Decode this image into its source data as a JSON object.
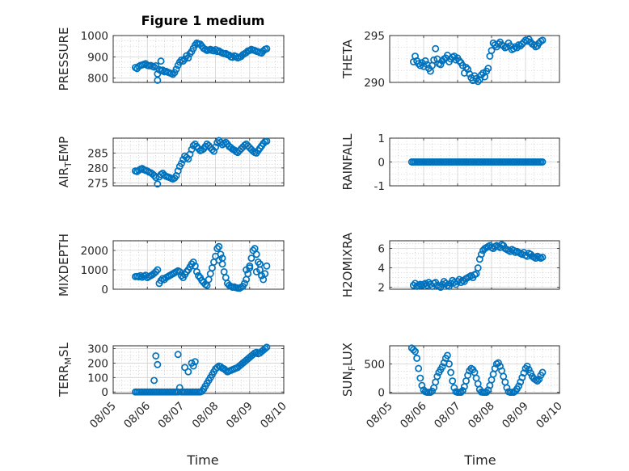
{
  "figure": {
    "title": "Figure 1 medium",
    "xlabel": "Time",
    "marker_color": "#0072BD"
  },
  "chart_data": [
    {
      "type": "scatter",
      "ylabel": "PRESSURE",
      "ylabel_sub": null,
      "xlim": [
        0,
        5
      ],
      "ylim": [
        780,
        1000
      ],
      "yticks": [
        800,
        900,
        1000
      ],
      "ytick_labels": [
        "800",
        "900",
        "1000"
      ],
      "xticks": [
        0,
        1,
        2,
        3,
        4,
        5
      ],
      "xtick_labels": [],
      "grid": true,
      "minor_grid": true,
      "x": [
        0.65,
        0.7,
        0.75,
        0.8,
        0.85,
        0.9,
        0.95,
        1,
        1.05,
        1.1,
        1.15,
        1.2,
        1.25,
        1.3,
        1.35,
        1.4,
        1.45,
        1.5,
        1.55,
        1.6,
        1.65,
        1.7,
        1.75,
        1.8,
        1.85,
        1.9,
        1.95,
        2,
        2.05,
        2.1,
        2.15,
        2.2,
        2.25,
        2.3,
        2.35,
        2.4,
        2.45,
        2.5,
        2.55,
        2.6,
        2.65,
        2.7,
        2.75,
        2.8,
        2.85,
        2.9,
        2.95,
        3,
        3.05,
        3.1,
        3.15,
        3.2,
        3.25,
        3.3,
        3.35,
        3.4,
        3.45,
        3.5,
        3.55,
        3.6,
        3.65,
        3.7,
        3.75,
        3.8,
        3.85,
        3.9,
        3.95,
        4,
        4.05,
        4.1,
        4.15,
        4.2,
        4.25,
        4.3,
        4.35,
        4.4,
        4.45,
        4.5,
        1.3,
        1.4
      ],
      "y": [
        850,
        845,
        855,
        860,
        862,
        865,
        868,
        860,
        858,
        860,
        855,
        852,
        858,
        820,
        840,
        835,
        838,
        830,
        832,
        828,
        825,
        822,
        818,
        826,
        842,
        860,
        875,
        885,
        880,
        890,
        905,
        895,
        915,
        925,
        940,
        955,
        965,
        962,
        960,
        950,
        940,
        935,
        930,
        932,
        935,
        930,
        928,
        934,
        925,
        928,
        922,
        918,
        915,
        916,
        910,
        908,
        900,
        898,
        905,
        902,
        895,
        898,
        902,
        910,
        915,
        920,
        928,
        930,
        935,
        932,
        930,
        926,
        924,
        920,
        918,
        928,
        935,
        938,
        790,
        880
      ]
    },
    {
      "type": "scatter",
      "ylabel": "THETA",
      "ylabel_sub": null,
      "xlim": [
        0,
        5
      ],
      "ylim": [
        290,
        295
      ],
      "yticks": [
        290,
        295
      ],
      "ytick_labels": [
        "290",
        "295"
      ],
      "xticks": [
        0,
        1,
        2,
        3,
        4,
        5
      ],
      "xtick_labels": [],
      "grid": true,
      "minor_grid": true,
      "x": [
        0.7,
        0.75,
        0.8,
        0.85,
        0.9,
        0.95,
        1,
        1.05,
        1.1,
        1.15,
        1.2,
        1.25,
        1.3,
        1.35,
        1.4,
        1.45,
        1.5,
        1.55,
        1.6,
        1.65,
        1.7,
        1.75,
        1.8,
        1.85,
        1.9,
        1.95,
        2,
        2.05,
        2.1,
        2.15,
        2.2,
        2.25,
        2.3,
        2.35,
        2.4,
        2.45,
        2.5,
        2.55,
        2.6,
        2.65,
        2.7,
        2.75,
        2.8,
        2.85,
        2.9,
        2.95,
        3,
        3.05,
        3.1,
        3.15,
        3.2,
        3.25,
        3.3,
        3.35,
        3.4,
        3.45,
        3.5,
        3.55,
        3.6,
        3.65,
        3.7,
        3.75,
        3.8,
        3.85,
        3.9,
        3.95,
        4,
        4.05,
        4.1,
        4.15,
        4.2,
        4.25,
        4.3,
        4.35,
        4.4,
        4.45,
        4.5
      ],
      "y": [
        292.2,
        292.8,
        292.3,
        292.0,
        291.8,
        292.1,
        291.7,
        292.3,
        291.9,
        291.5,
        291.2,
        291.8,
        292.4,
        293.6,
        292.5,
        292.0,
        291.9,
        292.3,
        292.5,
        292.6,
        292.9,
        292.2,
        292.5,
        292.7,
        292.8,
        292.4,
        292.6,
        292.3,
        292.1,
        291.8,
        291.0,
        291.6,
        291.4,
        290.9,
        290.5,
        290.2,
        290.7,
        290.4,
        290.1,
        290.3,
        290.8,
        291.0,
        290.6,
        291.2,
        291.5,
        292.8,
        293.4,
        294.2,
        294.0,
        293.8,
        294.1,
        294.3,
        294.0,
        293.9,
        293.7,
        293.8,
        294.2,
        293.9,
        293.5,
        293.6,
        293.8,
        293.7,
        294.0,
        293.9,
        294.1,
        294.3,
        294.5,
        294.4,
        294.6,
        294.3,
        294.1,
        294.0,
        293.8,
        293.9,
        294.2,
        294.4,
        294.5
      ]
    },
    {
      "type": "scatter",
      "ylabel": "AIR",
      "ylabel_sub": "T",
      "ylabel_suffix": "EMP",
      "xlim": [
        0,
        5
      ],
      "ylim": [
        274,
        290
      ],
      "yticks": [
        275,
        280,
        285
      ],
      "ytick_labels": [
        "275",
        "280",
        "285"
      ],
      "xticks": [
        0,
        1,
        2,
        3,
        4,
        5
      ],
      "xtick_labels": [],
      "grid": true,
      "minor_grid": true,
      "x": [
        0.65,
        0.7,
        0.75,
        0.8,
        0.85,
        0.9,
        0.95,
        1,
        1.05,
        1.1,
        1.15,
        1.2,
        1.25,
        1.3,
        1.35,
        1.4,
        1.45,
        1.5,
        1.55,
        1.6,
        1.65,
        1.7,
        1.75,
        1.8,
        1.85,
        1.9,
        1.95,
        2,
        2.05,
        2.1,
        2.15,
        2.2,
        2.25,
        2.3,
        2.35,
        2.4,
        2.45,
        2.5,
        2.55,
        2.6,
        2.65,
        2.7,
        2.75,
        2.8,
        2.85,
        2.9,
        2.95,
        3,
        3.05,
        3.1,
        3.15,
        3.2,
        3.25,
        3.3,
        3.35,
        3.4,
        3.45,
        3.5,
        3.55,
        3.6,
        3.65,
        3.7,
        3.75,
        3.8,
        3.85,
        3.9,
        3.95,
        4,
        4.05,
        4.1,
        4.15,
        4.2,
        4.25,
        4.3,
        4.35,
        4.4,
        4.45,
        4.5
      ],
      "y": [
        279.0,
        278.8,
        279.2,
        279.6,
        279.8,
        279.4,
        279.2,
        279.0,
        278.6,
        278.4,
        278.0,
        277.5,
        276.8,
        274.6,
        277.0,
        277.8,
        278.2,
        277.6,
        277.2,
        277.0,
        276.8,
        276.5,
        276.3,
        276.6,
        277.4,
        279.0,
        280.5,
        281.5,
        282.8,
        284.0,
        283.5,
        283.0,
        284.6,
        286.2,
        287.5,
        288.0,
        287.2,
        286.5,
        285.8,
        286.0,
        286.4,
        287.2,
        288.0,
        287.5,
        286.8,
        286.2,
        285.6,
        287.0,
        288.5,
        289.2,
        288.6,
        287.8,
        288.2,
        288.6,
        288.0,
        287.2,
        286.8,
        286.3,
        286.0,
        285.5,
        285.2,
        285.8,
        286.4,
        287.0,
        287.6,
        288.0,
        287.4,
        286.8,
        286.2,
        285.6,
        285.2,
        285.0,
        285.8,
        286.6,
        287.4,
        288.2,
        288.8,
        289.0
      ]
    },
    {
      "type": "scatter",
      "ylabel": "RAINFALL",
      "ylabel_sub": null,
      "xlim": [
        0,
        5
      ],
      "ylim": [
        -1,
        1
      ],
      "yticks": [
        -1,
        0,
        1
      ],
      "ytick_labels": [
        "-1",
        "0",
        "1"
      ],
      "xticks": [
        0,
        1,
        2,
        3,
        4,
        5
      ],
      "xtick_labels": [],
      "grid": true,
      "minor_grid": true,
      "x_range": [
        0.65,
        4.5
      ],
      "x_step": 0.05,
      "y_constant": 0
    },
    {
      "type": "scatter",
      "ylabel": "MIXDEPTH",
      "ylabel_sub": null,
      "xlim": [
        0,
        5
      ],
      "ylim": [
        0,
        2500
      ],
      "yticks": [
        0,
        1000,
        2000
      ],
      "ytick_labels": [
        "0",
        "1000",
        "2000"
      ],
      "xticks": [
        0,
        1,
        2,
        3,
        4,
        5
      ],
      "xtick_labels": [],
      "grid": true,
      "minor_grid": true,
      "x": [
        0.65,
        0.7,
        0.75,
        0.8,
        0.85,
        0.9,
        0.95,
        1,
        1.05,
        1.1,
        1.15,
        1.2,
        1.25,
        1.3,
        1.35,
        1.4,
        1.45,
        1.5,
        1.55,
        1.6,
        1.65,
        1.7,
        1.75,
        1.8,
        1.85,
        1.9,
        1.95,
        2,
        2.05,
        2.1,
        2.15,
        2.2,
        2.25,
        2.3,
        2.35,
        2.4,
        2.45,
        2.5,
        2.55,
        2.6,
        2.65,
        2.7,
        2.75,
        2.8,
        2.85,
        2.9,
        2.95,
        3,
        3.05,
        3.1,
        3.15,
        3.2,
        3.25,
        3.3,
        3.35,
        3.4,
        3.45,
        3.5,
        3.55,
        3.6,
        3.65,
        3.7,
        3.75,
        3.8,
        3.85,
        3.9,
        3.95,
        4,
        4.05,
        4.1,
        4.15,
        4.2,
        4.25,
        4.3,
        4.35,
        4.4,
        4.45,
        4.5,
        3.1,
        3.2,
        3.9,
        4.0,
        4.2,
        4.3
      ],
      "y": [
        650,
        660,
        640,
        700,
        620,
        680,
        720,
        600,
        650,
        700,
        750,
        820,
        900,
        1000,
        300,
        450,
        550,
        500,
        600,
        650,
        700,
        750,
        800,
        850,
        900,
        950,
        900,
        700,
        600,
        750,
        900,
        1000,
        1150,
        1300,
        1400,
        1200,
        900,
        700,
        600,
        450,
        350,
        250,
        200,
        500,
        800,
        1100,
        1400,
        1700,
        2100,
        2200,
        1800,
        1300,
        900,
        600,
        300,
        200,
        150,
        100,
        120,
        80,
        60,
        50,
        100,
        150,
        300,
        500,
        800,
        1200,
        1600,
        2000,
        2100,
        1800,
        1400,
        1000,
        700,
        500,
        800,
        1200,
        1500,
        1600,
        1000,
        1100,
        900,
        1300
      ]
    },
    {
      "type": "scatter",
      "ylabel": "H2OMIXRA",
      "ylabel_sub": null,
      "xlim": [
        0,
        5
      ],
      "ylim": [
        1.8,
        6.8
      ],
      "yticks": [
        2,
        4,
        6
      ],
      "ytick_labels": [
        "2",
        "4",
        "6"
      ],
      "xticks": [
        0,
        1,
        2,
        3,
        4,
        5
      ],
      "xtick_labels": [],
      "grid": true,
      "minor_grid": true,
      "x": [
        0.7,
        0.75,
        0.8,
        0.85,
        0.9,
        0.95,
        1,
        1.05,
        1.1,
        1.15,
        1.2,
        1.25,
        1.3,
        1.35,
        1.4,
        1.45,
        1.5,
        1.55,
        1.6,
        1.65,
        1.7,
        1.75,
        1.8,
        1.85,
        1.9,
        1.95,
        2,
        2.05,
        2.1,
        2.15,
        2.2,
        2.25,
        2.3,
        2.35,
        2.4,
        2.45,
        2.5,
        2.55,
        2.6,
        2.65,
        2.7,
        2.75,
        2.8,
        2.85,
        2.9,
        2.95,
        3,
        3.05,
        3.1,
        3.15,
        3.2,
        3.25,
        3.3,
        3.35,
        3.4,
        3.45,
        3.5,
        3.55,
        3.6,
        3.65,
        3.7,
        3.75,
        3.8,
        3.85,
        3.9,
        3.95,
        4,
        4.05,
        4.1,
        4.15,
        4.2,
        4.25,
        4.3,
        4.35,
        4.4,
        4.45,
        4.5
      ],
      "y": [
        2.2,
        2.4,
        2.1,
        2.2,
        2.3,
        2.2,
        2.3,
        2.4,
        2.2,
        2.5,
        2.3,
        2.1,
        2.4,
        2.5,
        2.2,
        2.1,
        2.0,
        2.3,
        2.6,
        2.4,
        2.2,
        2.1,
        2.4,
        2.7,
        2.5,
        2.3,
        2.6,
        2.8,
        2.5,
        2.7,
        2.6,
        2.9,
        3.0,
        3.1,
        3.2,
        3.0,
        3.3,
        3.4,
        4.0,
        4.9,
        5.4,
        5.8,
        6.0,
        6.1,
        6.2,
        6.3,
        6.1,
        6.0,
        6.2,
        6.3,
        6.2,
        6.1,
        6.4,
        6.3,
        6.0,
        5.9,
        5.8,
        5.7,
        5.9,
        5.8,
        5.6,
        5.7,
        5.6,
        5.5,
        5.4,
        5.6,
        5.3,
        5.2,
        5.5,
        5.4,
        5.2,
        5.1,
        5.0,
        5.2,
        5.1,
        5.0,
        5.1
      ]
    },
    {
      "type": "scatter",
      "ylabel": "TERR",
      "ylabel_sub": "M",
      "ylabel_suffix": "SL",
      "xlim": [
        0,
        5
      ],
      "ylim": [
        -10,
        320
      ],
      "yticks": [
        0,
        100,
        200,
        300
      ],
      "ytick_labels": [
        "0",
        "100",
        "200",
        "300"
      ],
      "xticks": [
        0,
        1,
        2,
        3,
        4,
        5
      ],
      "xtick_labels": [
        "08/05",
        "08/06",
        "08/07",
        "08/08",
        "08/09",
        "08/10"
      ],
      "grid": true,
      "minor_grid": true,
      "x": [
        0.65,
        0.7,
        0.75,
        0.8,
        0.85,
        0.9,
        0.95,
        1,
        1.05,
        1.1,
        1.15,
        1.2,
        1.25,
        1.3,
        1.35,
        1.4,
        1.45,
        1.5,
        1.55,
        1.6,
        1.65,
        1.7,
        1.75,
        1.8,
        1.85,
        1.9,
        1.95,
        2,
        2.05,
        2.1,
        2.15,
        2.2,
        2.25,
        2.3,
        2.35,
        2.4,
        2.45,
        2.5,
        2.55,
        2.6,
        2.65,
        2.7,
        2.75,
        2.8,
        2.85,
        2.9,
        2.95,
        3,
        3.05,
        3.1,
        3.15,
        3.2,
        3.25,
        3.3,
        3.35,
        3.4,
        3.45,
        3.5,
        3.55,
        3.6,
        3.65,
        3.7,
        3.75,
        3.8,
        3.85,
        3.9,
        3.95,
        4,
        4.05,
        4.1,
        4.15,
        4.2,
        4.25,
        4.3,
        4.35,
        4.4,
        4.45,
        4.5,
        1.2,
        1.25,
        1.3,
        1.9,
        2.1,
        2.2,
        2.3,
        2.35,
        2.4
      ],
      "y": [
        0,
        0,
        0,
        0,
        0,
        0,
        0,
        0,
        0,
        0,
        0,
        0,
        0,
        0,
        0,
        0,
        0,
        0,
        0,
        0,
        0,
        0,
        0,
        0,
        0,
        0,
        30,
        0,
        0,
        0,
        0,
        0,
        0,
        0,
        0,
        0,
        0,
        0,
        0,
        5,
        20,
        40,
        60,
        80,
        100,
        120,
        140,
        160,
        170,
        180,
        175,
        165,
        160,
        150,
        140,
        145,
        150,
        155,
        160,
        165,
        170,
        180,
        190,
        200,
        210,
        220,
        230,
        240,
        250,
        260,
        270,
        275,
        265,
        270,
        280,
        290,
        300,
        310,
        80,
        250,
        190,
        260,
        170,
        140,
        200,
        180,
        210
      ]
    },
    {
      "type": "scatter",
      "ylabel": "SUN",
      "ylabel_sub": "F",
      "ylabel_suffix": "LUX",
      "xlim": [
        0,
        5
      ],
      "ylim": [
        -20,
        820
      ],
      "yticks": [
        0,
        500
      ],
      "ytick_labels": [
        "0",
        "500"
      ],
      "xticks": [
        0,
        1,
        2,
        3,
        4,
        5
      ],
      "xtick_labels": [
        "08/05",
        "08/06",
        "08/07",
        "08/08",
        "08/09",
        "08/10"
      ],
      "grid": true,
      "minor_grid": true,
      "x": [
        0.65,
        0.7,
        0.75,
        0.8,
        0.85,
        0.9,
        0.95,
        1,
        1.05,
        1.1,
        1.15,
        1.2,
        1.25,
        1.3,
        1.35,
        1.4,
        1.45,
        1.5,
        1.55,
        1.6,
        1.65,
        1.7,
        1.75,
        1.8,
        1.85,
        1.9,
        1.95,
        2,
        2.05,
        2.1,
        2.15,
        2.2,
        2.25,
        2.3,
        2.35,
        2.4,
        2.45,
        2.5,
        2.55,
        2.6,
        2.65,
        2.7,
        2.75,
        2.8,
        2.85,
        2.9,
        2.95,
        3,
        3.05,
        3.1,
        3.15,
        3.2,
        3.25,
        3.3,
        3.35,
        3.4,
        3.45,
        3.5,
        3.55,
        3.6,
        3.65,
        3.7,
        3.75,
        3.8,
        3.85,
        3.9,
        3.95,
        4,
        4.05,
        4.1,
        4.15,
        4.2,
        4.25,
        4.3,
        4.35,
        4.4,
        4.45,
        4.5
      ],
      "y": [
        780,
        750,
        720,
        600,
        420,
        250,
        120,
        40,
        10,
        0,
        0,
        0,
        20,
        80,
        180,
        280,
        350,
        400,
        450,
        520,
        600,
        650,
        500,
        350,
        200,
        80,
        10,
        0,
        0,
        0,
        30,
        100,
        200,
        300,
        380,
        420,
        400,
        350,
        250,
        150,
        50,
        5,
        0,
        0,
        0,
        40,
        120,
        220,
        320,
        420,
        500,
        520,
        460,
        380,
        280,
        180,
        80,
        10,
        0,
        0,
        0,
        20,
        60,
        110,
        180,
        260,
        340,
        420,
        460,
        400,
        340,
        280,
        240,
        220,
        200,
        230,
        300,
        350
      ]
    }
  ]
}
